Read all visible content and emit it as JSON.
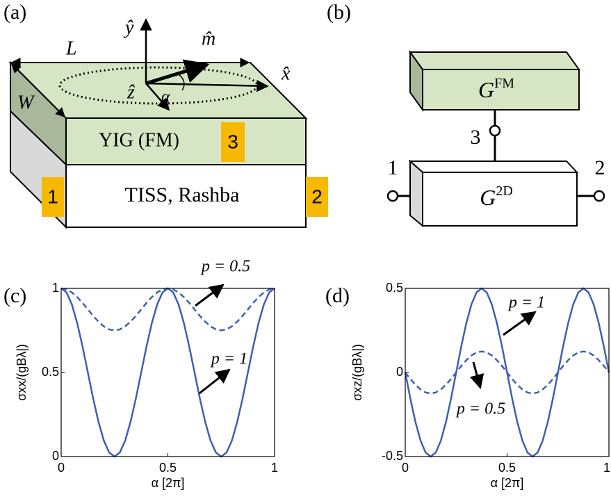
{
  "diagram_a": {
    "panel_label": "(a)",
    "y_axis": "ŷ",
    "m_axis": "m̂",
    "x_axis": "x̂",
    "z_axis": "ẑ",
    "length": "L",
    "width": "W",
    "angle": "α",
    "top_layer": "YIG (FM)",
    "bottom_layer": "TISS, Rashba",
    "terminal_3": "3",
    "terminal_1": "1",
    "terminal_2": "2"
  },
  "diagram_b": {
    "panel_label": "(b)",
    "top_block": {
      "base": "G",
      "sup": "FM"
    },
    "bottom_block": {
      "base": "G",
      "sup": "2D"
    },
    "terminal_3": "3",
    "terminal_1": "1",
    "terminal_2": "2"
  },
  "chart_data": [
    {
      "type": "line",
      "panel_label": "(c)",
      "xlabel": "α [2π]",
      "ylabel": "σxx/(gBλ|)",
      "x": [
        0,
        0.025,
        0.05,
        0.075,
        0.1,
        0.125,
        0.15,
        0.175,
        0.2,
        0.225,
        0.25,
        0.275,
        0.3,
        0.325,
        0.35,
        0.375,
        0.4,
        0.425,
        0.45,
        0.475,
        0.5,
        0.525,
        0.55,
        0.575,
        0.6,
        0.625,
        0.65,
        0.675,
        0.7,
        0.725,
        0.75,
        0.775,
        0.8,
        0.825,
        0.85,
        0.875,
        0.9,
        0.925,
        0.95,
        0.975,
        1
      ],
      "series": [
        {
          "name": "p = 1",
          "color": "#3f5fae",
          "dashed": false,
          "values": [
            1,
            0.976,
            0.905,
            0.794,
            0.655,
            0.5,
            0.345,
            0.206,
            0.095,
            0.024,
            0,
            0.024,
            0.095,
            0.206,
            0.345,
            0.5,
            0.655,
            0.794,
            0.905,
            0.976,
            1,
            0.976,
            0.905,
            0.794,
            0.655,
            0.5,
            0.345,
            0.206,
            0.095,
            0.024,
            0,
            0.024,
            0.095,
            0.206,
            0.345,
            0.5,
            0.655,
            0.794,
            0.905,
            0.976,
            1
          ]
        },
        {
          "name": "p = 0.5",
          "color": "#3f5fae",
          "dashed": true,
          "values": [
            1,
            0.994,
            0.976,
            0.948,
            0.914,
            0.875,
            0.836,
            0.802,
            0.774,
            0.756,
            0.75,
            0.756,
            0.774,
            0.802,
            0.836,
            0.875,
            0.914,
            0.948,
            0.976,
            0.994,
            1,
            0.994,
            0.976,
            0.948,
            0.914,
            0.875,
            0.836,
            0.802,
            0.774,
            0.756,
            0.75,
            0.756,
            0.774,
            0.802,
            0.836,
            0.875,
            0.914,
            0.948,
            0.976,
            0.994,
            1
          ]
        }
      ],
      "xlim": [
        0,
        1
      ],
      "ylim": [
        0,
        1
      ],
      "xticks": [
        0,
        0.5,
        1
      ],
      "yticks": [
        0,
        0.5,
        1
      ]
    },
    {
      "type": "line",
      "panel_label": "(d)",
      "xlabel": "α [2π]",
      "ylabel": "σxz/(gBλ|)",
      "x": [
        0,
        0.025,
        0.05,
        0.075,
        0.1,
        0.125,
        0.15,
        0.175,
        0.2,
        0.225,
        0.25,
        0.275,
        0.3,
        0.325,
        0.35,
        0.375,
        0.4,
        0.425,
        0.45,
        0.475,
        0.5,
        0.525,
        0.55,
        0.575,
        0.6,
        0.625,
        0.65,
        0.675,
        0.7,
        0.725,
        0.75,
        0.775,
        0.8,
        0.825,
        0.85,
        0.875,
        0.9,
        0.925,
        0.95,
        0.975,
        1
      ],
      "series": [
        {
          "name": "p = 1",
          "color": "#3f5fae",
          "dashed": false,
          "values": [
            0,
            -0.155,
            -0.294,
            -0.405,
            -0.476,
            -0.5,
            -0.476,
            -0.405,
            -0.294,
            -0.155,
            0,
            0.155,
            0.294,
            0.405,
            0.476,
            0.5,
            0.476,
            0.405,
            0.294,
            0.155,
            0,
            -0.155,
            -0.294,
            -0.405,
            -0.476,
            -0.5,
            -0.476,
            -0.405,
            -0.294,
            -0.155,
            0,
            0.155,
            0.294,
            0.405,
            0.476,
            0.5,
            0.476,
            0.405,
            0.294,
            0.155,
            0
          ]
        },
        {
          "name": "p = 0.5",
          "color": "#3f5fae",
          "dashed": true,
          "values": [
            0,
            -0.039,
            -0.073,
            -0.101,
            -0.119,
            -0.125,
            -0.119,
            -0.101,
            -0.073,
            -0.039,
            0,
            0.039,
            0.073,
            0.101,
            0.119,
            0.125,
            0.119,
            0.101,
            0.073,
            0.039,
            0,
            -0.039,
            -0.073,
            -0.101,
            -0.119,
            -0.125,
            -0.119,
            -0.101,
            -0.073,
            -0.039,
            0,
            0.039,
            0.073,
            0.101,
            0.119,
            0.125,
            0.119,
            0.101,
            0.073,
            0.039,
            0
          ]
        }
      ],
      "xlim": [
        0,
        1
      ],
      "ylim": [
        -0.5,
        0.5
      ],
      "xticks": [
        0,
        0.5,
        1
      ],
      "yticks": [
        -0.5,
        0,
        0.5
      ]
    }
  ]
}
